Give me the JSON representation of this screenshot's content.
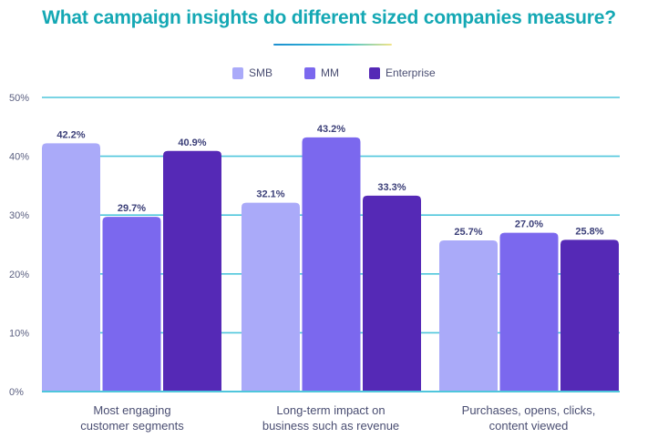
{
  "chart_data": {
    "type": "bar",
    "title": "What campaign insights do different sized companies measure?",
    "xlabel": "",
    "ylabel": "",
    "ylim": [
      0,
      50
    ],
    "yticks": [
      "0%",
      "10%",
      "20%",
      "30%",
      "40%",
      "50%"
    ],
    "ytick_values": [
      0,
      10,
      20,
      30,
      40,
      50
    ],
    "grid": true,
    "legend_position": "top-center",
    "categories": [
      "Most engaging customer segments",
      "Long-term impact on business such as revenue",
      "Purchases, opens, clicks, content viewed"
    ],
    "category_lines": [
      [
        "Most engaging",
        "customer segments"
      ],
      [
        "Long-term impact on",
        "business such as revenue"
      ],
      [
        "Purchases, opens, clicks,",
        "content viewed"
      ]
    ],
    "series": [
      {
        "name": "SMB",
        "color": "#aaaaf9",
        "values": [
          42.2,
          32.1,
          25.7
        ],
        "labels": [
          "42.2%",
          "32.1%",
          "25.7%"
        ]
      },
      {
        "name": "MM",
        "color": "#7b68ee",
        "values": [
          29.7,
          43.2,
          27.0
        ],
        "labels": [
          "29.7%",
          "43.2%",
          "27.0%"
        ]
      },
      {
        "name": "Enterprise",
        "color": "#5529b6",
        "values": [
          40.9,
          33.3,
          25.8
        ],
        "labels": [
          "40.9%",
          "33.3%",
          "25.8%"
        ]
      }
    ]
  },
  "colors": {
    "title": "#14a8b4",
    "gridline": "#4fc6dc",
    "label_text": "#3b3f78",
    "axis_text": "#5a5f80"
  }
}
